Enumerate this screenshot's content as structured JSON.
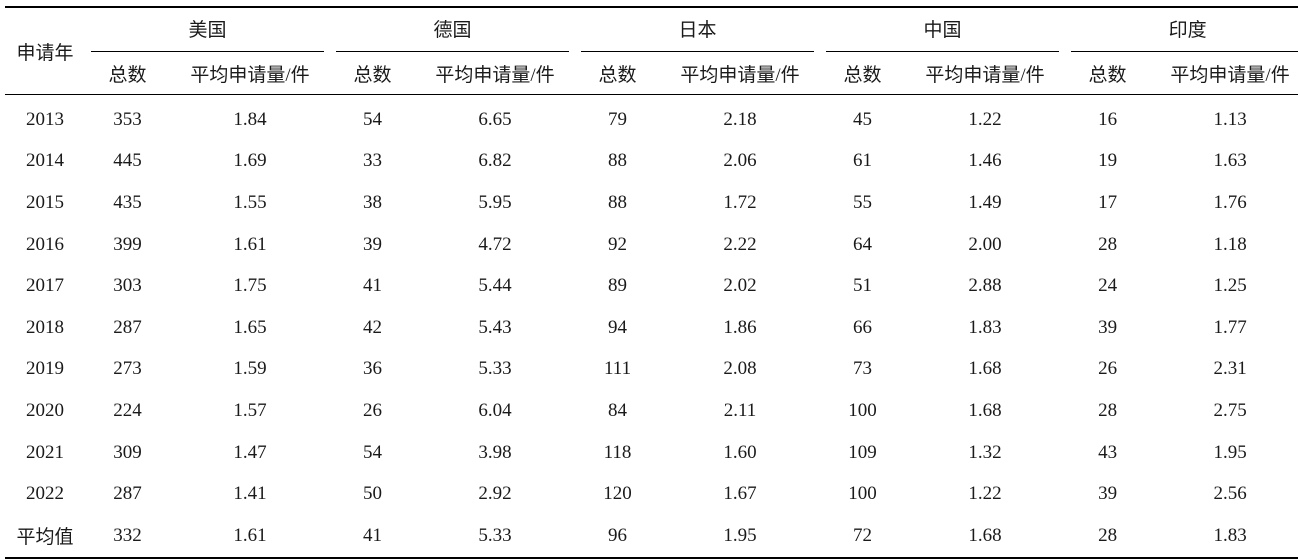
{
  "header": {
    "year_label": "申请年",
    "countries": [
      "美国",
      "德国",
      "日本",
      "中国",
      "印度"
    ],
    "total_label": "总数",
    "avg_label": "平均申请量/件"
  },
  "rows": [
    {
      "year": "2013",
      "values": [
        "353",
        "1.84",
        "54",
        "6.65",
        "79",
        "2.18",
        "45",
        "1.22",
        "16",
        "1.13"
      ]
    },
    {
      "year": "2014",
      "values": [
        "445",
        "1.69",
        "33",
        "6.82",
        "88",
        "2.06",
        "61",
        "1.46",
        "19",
        "1.63"
      ]
    },
    {
      "year": "2015",
      "values": [
        "435",
        "1.55",
        "38",
        "5.95",
        "88",
        "1.72",
        "55",
        "1.49",
        "17",
        "1.76"
      ]
    },
    {
      "year": "2016",
      "values": [
        "399",
        "1.61",
        "39",
        "4.72",
        "92",
        "2.22",
        "64",
        "2.00",
        "28",
        "1.18"
      ]
    },
    {
      "year": "2017",
      "values": [
        "303",
        "1.75",
        "41",
        "5.44",
        "89",
        "2.02",
        "51",
        "2.88",
        "24",
        "1.25"
      ]
    },
    {
      "year": "2018",
      "values": [
        "287",
        "1.65",
        "42",
        "5.43",
        "94",
        "1.86",
        "66",
        "1.83",
        "39",
        "1.77"
      ]
    },
    {
      "year": "2019",
      "values": [
        "273",
        "1.59",
        "36",
        "5.33",
        "111",
        "2.08",
        "73",
        "1.68",
        "26",
        "2.31"
      ]
    },
    {
      "year": "2020",
      "values": [
        "224",
        "1.57",
        "26",
        "6.04",
        "84",
        "2.11",
        "100",
        "1.68",
        "28",
        "2.75"
      ]
    },
    {
      "year": "2021",
      "values": [
        "309",
        "1.47",
        "54",
        "3.98",
        "118",
        "1.60",
        "109",
        "1.32",
        "43",
        "1.95"
      ]
    },
    {
      "year": "2022",
      "values": [
        "287",
        "1.41",
        "50",
        "2.92",
        "120",
        "1.67",
        "100",
        "1.22",
        "39",
        "2.56"
      ]
    },
    {
      "year": "平均值",
      "values": [
        "332",
        "1.61",
        "41",
        "5.33",
        "96",
        "1.95",
        "72",
        "1.68",
        "28",
        "1.83"
      ]
    }
  ]
}
